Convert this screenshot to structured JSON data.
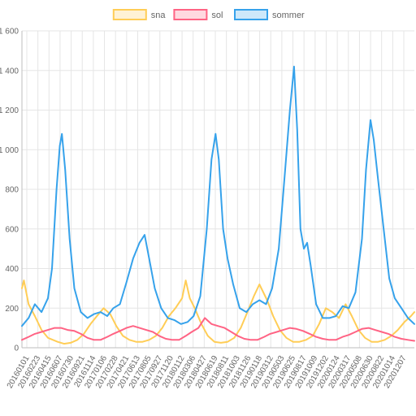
{
  "chart_data": {
    "type": "line",
    "title": "",
    "xlabel": "",
    "ylabel": "",
    "ylim": [
      0,
      1600
    ],
    "y_ticks": [
      0,
      200,
      400,
      600,
      800,
      1000,
      1200,
      1400,
      1600
    ],
    "y_tick_labels": [
      "0",
      "200",
      "400",
      "600",
      "800",
      "1 000",
      "1 200",
      "1 400",
      "1 600"
    ],
    "x_tick_labels": [
      "20160101",
      "20160223",
      "20160415",
      "20160607",
      "20160730",
      "20160921",
      "20161114",
      "20170106",
      "20170228",
      "20170421",
      "20170613",
      "20170805",
      "20170927",
      "20171120",
      "20180112",
      "20180306",
      "20180427",
      "20180619",
      "20180811",
      "20181003",
      "20181126",
      "20190118",
      "20190312",
      "20190503",
      "20190625",
      "20190817",
      "20191009",
      "20191202",
      "20200124",
      "20200317",
      "20200508",
      "20200630",
      "20200822",
      "20201014",
      "20201207"
    ],
    "x_range": [
      "2016-01-01",
      "2020-12-31"
    ],
    "grid": true,
    "legend_position": "top-center",
    "series": [
      {
        "name": "sna",
        "color": "#ffcd56",
        "points": [
          [
            "2016-01-01",
            300
          ],
          [
            "2016-01-10",
            340
          ],
          [
            "2016-02-01",
            220
          ],
          [
            "2016-03-01",
            160
          ],
          [
            "2016-04-01",
            90
          ],
          [
            "2016-05-01",
            50
          ],
          [
            "2016-06-15",
            30
          ],
          [
            "2016-07-15",
            20
          ],
          [
            "2016-08-15",
            25
          ],
          [
            "2016-09-15",
            40
          ],
          [
            "2016-10-15",
            70
          ],
          [
            "2016-11-15",
            120
          ],
          [
            "2016-12-15",
            160
          ],
          [
            "2017-01-15",
            200
          ],
          [
            "2017-02-15",
            170
          ],
          [
            "2017-03-15",
            110
          ],
          [
            "2017-04-15",
            60
          ],
          [
            "2017-05-15",
            40
          ],
          [
            "2017-06-15",
            30
          ],
          [
            "2017-07-15",
            30
          ],
          [
            "2017-08-15",
            40
          ],
          [
            "2017-09-15",
            60
          ],
          [
            "2017-10-15",
            100
          ],
          [
            "2017-11-15",
            160
          ],
          [
            "2017-12-15",
            200
          ],
          [
            "2018-01-15",
            250
          ],
          [
            "2018-02-01",
            340
          ],
          [
            "2018-02-20",
            250
          ],
          [
            "2018-03-15",
            200
          ],
          [
            "2018-04-15",
            120
          ],
          [
            "2018-05-15",
            60
          ],
          [
            "2018-06-15",
            30
          ],
          [
            "2018-07-15",
            25
          ],
          [
            "2018-08-15",
            30
          ],
          [
            "2018-09-15",
            50
          ],
          [
            "2018-10-15",
            100
          ],
          [
            "2018-11-15",
            180
          ],
          [
            "2018-12-15",
            260
          ],
          [
            "2019-01-10",
            320
          ],
          [
            "2019-02-15",
            240
          ],
          [
            "2019-03-15",
            160
          ],
          [
            "2019-04-15",
            90
          ],
          [
            "2019-05-15",
            50
          ],
          [
            "2019-06-15",
            30
          ],
          [
            "2019-07-15",
            30
          ],
          [
            "2019-08-15",
            40
          ],
          [
            "2019-09-15",
            60
          ],
          [
            "2019-10-15",
            120
          ],
          [
            "2019-11-15",
            200
          ],
          [
            "2019-12-15",
            180
          ],
          [
            "2020-01-15",
            150
          ],
          [
            "2020-02-15",
            220
          ],
          [
            "2020-03-15",
            160
          ],
          [
            "2020-04-15",
            90
          ],
          [
            "2020-05-15",
            50
          ],
          [
            "2020-06-15",
            30
          ],
          [
            "2020-07-15",
            30
          ],
          [
            "2020-08-15",
            40
          ],
          [
            "2020-09-15",
            60
          ],
          [
            "2020-10-15",
            90
          ],
          [
            "2020-11-15",
            130
          ],
          [
            "2020-12-15",
            160
          ],
          [
            "2020-12-31",
            180
          ]
        ]
      },
      {
        "name": "sol",
        "color": "#ff6384",
        "points": [
          [
            "2016-01-01",
            40
          ],
          [
            "2016-02-01",
            55
          ],
          [
            "2016-03-01",
            70
          ],
          [
            "2016-04-01",
            80
          ],
          [
            "2016-05-01",
            90
          ],
          [
            "2016-06-01",
            100
          ],
          [
            "2016-07-01",
            100
          ],
          [
            "2016-08-01",
            90
          ],
          [
            "2016-09-01",
            85
          ],
          [
            "2016-10-01",
            70
          ],
          [
            "2016-11-01",
            50
          ],
          [
            "2016-12-01",
            40
          ],
          [
            "2017-01-01",
            40
          ],
          [
            "2017-02-01",
            55
          ],
          [
            "2017-03-01",
            70
          ],
          [
            "2017-04-01",
            85
          ],
          [
            "2017-05-01",
            100
          ],
          [
            "2017-06-01",
            110
          ],
          [
            "2017-07-01",
            100
          ],
          [
            "2017-08-01",
            90
          ],
          [
            "2017-09-01",
            80
          ],
          [
            "2017-10-01",
            60
          ],
          [
            "2017-11-01",
            45
          ],
          [
            "2017-12-01",
            40
          ],
          [
            "2018-01-01",
            40
          ],
          [
            "2018-02-01",
            60
          ],
          [
            "2018-03-01",
            80
          ],
          [
            "2018-04-01",
            100
          ],
          [
            "2018-05-01",
            150
          ],
          [
            "2018-06-01",
            120
          ],
          [
            "2018-07-01",
            110
          ],
          [
            "2018-08-01",
            100
          ],
          [
            "2018-09-01",
            80
          ],
          [
            "2018-10-01",
            60
          ],
          [
            "2018-11-01",
            45
          ],
          [
            "2018-12-01",
            40
          ],
          [
            "2019-01-01",
            40
          ],
          [
            "2019-02-01",
            55
          ],
          [
            "2019-03-01",
            70
          ],
          [
            "2019-04-01",
            80
          ],
          [
            "2019-05-01",
            90
          ],
          [
            "2019-06-01",
            100
          ],
          [
            "2019-07-01",
            95
          ],
          [
            "2019-08-01",
            85
          ],
          [
            "2019-09-01",
            70
          ],
          [
            "2019-10-01",
            55
          ],
          [
            "2019-11-01",
            45
          ],
          [
            "2019-12-01",
            40
          ],
          [
            "2020-01-01",
            40
          ],
          [
            "2020-02-01",
            55
          ],
          [
            "2020-03-01",
            65
          ],
          [
            "2020-04-01",
            80
          ],
          [
            "2020-05-01",
            95
          ],
          [
            "2020-06-01",
            100
          ],
          [
            "2020-07-01",
            90
          ],
          [
            "2020-08-01",
            80
          ],
          [
            "2020-09-01",
            70
          ],
          [
            "2020-10-01",
            55
          ],
          [
            "2020-11-01",
            45
          ],
          [
            "2020-12-01",
            40
          ],
          [
            "2020-12-31",
            35
          ]
        ]
      },
      {
        "name": "sommer",
        "color": "#36a2eb",
        "points": [
          [
            "2016-01-01",
            110
          ],
          [
            "2016-02-01",
            150
          ],
          [
            "2016-03-01",
            220
          ],
          [
            "2016-04-01",
            180
          ],
          [
            "2016-05-01",
            250
          ],
          [
            "2016-05-20",
            400
          ],
          [
            "2016-06-10",
            800
          ],
          [
            "2016-06-25",
            1020
          ],
          [
            "2016-07-05",
            1080
          ],
          [
            "2016-07-20",
            900
          ],
          [
            "2016-08-10",
            550
          ],
          [
            "2016-09-01",
            300
          ],
          [
            "2016-10-01",
            180
          ],
          [
            "2016-11-01",
            150
          ],
          [
            "2016-12-01",
            170
          ],
          [
            "2017-01-01",
            180
          ],
          [
            "2017-02-01",
            160
          ],
          [
            "2017-03-01",
            200
          ],
          [
            "2017-04-01",
            220
          ],
          [
            "2017-05-01",
            330
          ],
          [
            "2017-06-01",
            450
          ],
          [
            "2017-07-01",
            530
          ],
          [
            "2017-07-25",
            570
          ],
          [
            "2017-08-15",
            450
          ],
          [
            "2017-09-10",
            300
          ],
          [
            "2017-10-10",
            200
          ],
          [
            "2017-11-10",
            150
          ],
          [
            "2017-12-10",
            140
          ],
          [
            "2018-01-10",
            120
          ],
          [
            "2018-02-10",
            130
          ],
          [
            "2018-03-10",
            160
          ],
          [
            "2018-04-10",
            260
          ],
          [
            "2018-05-10",
            600
          ],
          [
            "2018-06-01",
            950
          ],
          [
            "2018-06-20",
            1080
          ],
          [
            "2018-07-05",
            950
          ],
          [
            "2018-07-25",
            600
          ],
          [
            "2018-08-15",
            450
          ],
          [
            "2018-09-10",
            320
          ],
          [
            "2018-10-10",
            200
          ],
          [
            "2018-11-10",
            180
          ],
          [
            "2018-12-10",
            220
          ],
          [
            "2019-01-10",
            240
          ],
          [
            "2019-02-10",
            220
          ],
          [
            "2019-03-10",
            300
          ],
          [
            "2019-04-10",
            500
          ],
          [
            "2019-05-10",
            900
          ],
          [
            "2019-06-01",
            1200
          ],
          [
            "2019-06-20",
            1420
          ],
          [
            "2019-07-05",
            1100
          ],
          [
            "2019-07-20",
            600
          ],
          [
            "2019-08-05",
            500
          ],
          [
            "2019-08-20",
            530
          ],
          [
            "2019-09-05",
            420
          ],
          [
            "2019-10-01",
            220
          ],
          [
            "2019-11-01",
            150
          ],
          [
            "2019-12-01",
            150
          ],
          [
            "2020-01-01",
            160
          ],
          [
            "2020-02-01",
            210
          ],
          [
            "2020-03-01",
            200
          ],
          [
            "2020-04-01",
            280
          ],
          [
            "2020-05-01",
            550
          ],
          [
            "2020-05-20",
            900
          ],
          [
            "2020-06-10",
            1150
          ],
          [
            "2020-06-25",
            1050
          ],
          [
            "2020-07-15",
            850
          ],
          [
            "2020-08-10",
            600
          ],
          [
            "2020-09-05",
            350
          ],
          [
            "2020-10-01",
            250
          ],
          [
            "2020-11-01",
            200
          ],
          [
            "2020-12-01",
            150
          ],
          [
            "2020-12-31",
            120
          ]
        ]
      }
    ]
  }
}
